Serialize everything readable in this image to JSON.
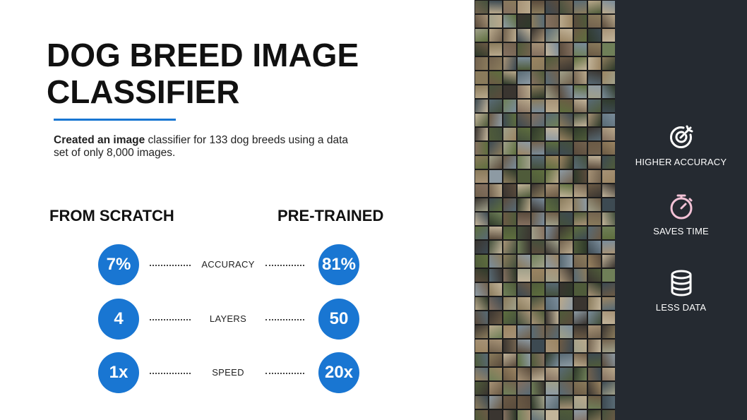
{
  "title": "DOG BREED IMAGE CLASSIFIER",
  "description": {
    "bold": "Created an image",
    "rest": " classifier for 133 dog breeds using a data set of only 8,000 images."
  },
  "columns": {
    "left": "FROM SCRATCH",
    "right": "PRE-TRAINED"
  },
  "comparisons": [
    {
      "metric": "ACCURACY",
      "scratch": "7%",
      "pretrained": "81%"
    },
    {
      "metric": "LAYERS",
      "scratch": "4",
      "pretrained": "50"
    },
    {
      "metric": "SPEED",
      "scratch": "1x",
      "pretrained": "20x"
    }
  ],
  "features": [
    {
      "label": "HIGHER ACCURACY",
      "icon": "target-arrow-icon"
    },
    {
      "label": "SAVES TIME",
      "icon": "stopwatch-icon"
    },
    {
      "label": "LESS DATA",
      "icon": "database-icon"
    }
  ],
  "colors": {
    "accent_blue": "#1976d2",
    "sidebar_bg": "#252a31",
    "icon_pink": "#f3c2d6"
  }
}
